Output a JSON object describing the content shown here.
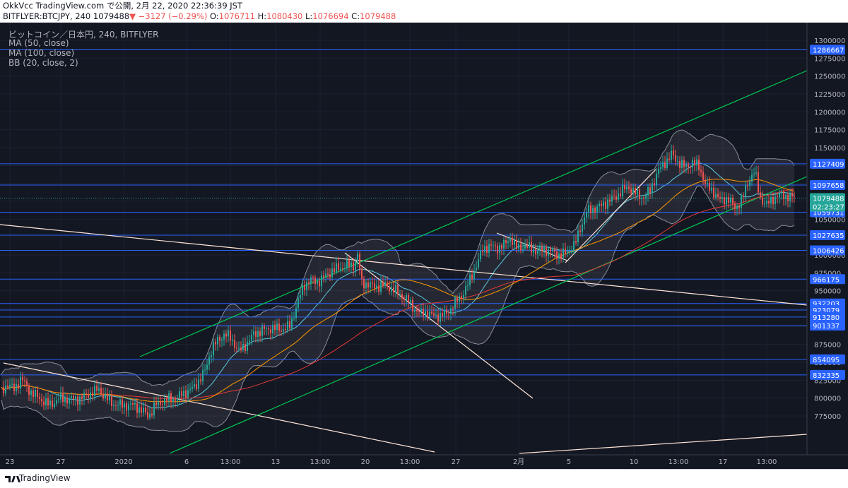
{
  "header": {
    "line1": "OkkVcc TradingView.com で公開, 2月 22, 2020 22:36:39 JST",
    "symbol": "BITFLYER:BTCJPY, 240",
    "last": "1079488",
    "change": "−3127 (−0.29%)",
    "o_label": "O:",
    "o_value": "1076711",
    "h_label": "H:",
    "h_value": "1080430",
    "l_label": "L:",
    "l_value": "1076694",
    "c_label": "C:",
    "c_value": "1079488"
  },
  "legend": {
    "title": "ビットコイン／日本円, 240, BITFLYER",
    "ma50": "MA (50, close)",
    "ma100": "MA (100, close)",
    "bb": "BB (20, close, 2)"
  },
  "footer": {
    "brand": "TradingView"
  },
  "chart_data": {
    "type": "candlestick",
    "price_axis": {
      "ticks": [
        1300000,
        1275000,
        1250000,
        1225000,
        1200000,
        1175000,
        1150000,
        1125000,
        1100000,
        1075000,
        1050000,
        1025000,
        1000000,
        975000,
        950000,
        925000,
        900000,
        875000,
        850000,
        825000,
        800000,
        775000
      ],
      "range": [
        765000,
        1310000
      ]
    },
    "time_axis": [
      "23",
      "27",
      "2020",
      "6",
      "13:00",
      "13",
      "13:00",
      "20",
      "13:00",
      "27",
      "2月",
      "5",
      "10",
      "13:00",
      "17",
      "13:00"
    ],
    "horizontal_levels": [
      1286667,
      1127409,
      1097658,
      1059731,
      1027635,
      1006426,
      966175,
      932203,
      923079,
      913280,
      901337,
      854095,
      832335
    ],
    "current_price": 1079488,
    "countdown": "02:23:27",
    "colors": {
      "up": "#26a69a",
      "down": "#ef5350",
      "ma50": "#ff9800",
      "ma100": "#e53935",
      "bb": "#5ac8e0",
      "levels": "#2962ff",
      "channel": "#00c853",
      "trend": "#ffe0d0",
      "background": "#131722"
    },
    "price_path": [
      [
        0,
        805000
      ],
      [
        10,
        820000
      ],
      [
        20,
        812000
      ],
      [
        30,
        828000
      ],
      [
        40,
        812000
      ],
      [
        55,
        800000
      ],
      [
        70,
        790000
      ],
      [
        85,
        800000
      ],
      [
        100,
        798000
      ],
      [
        115,
        800000
      ],
      [
        130,
        808000
      ],
      [
        140,
        812000
      ],
      [
        150,
        800000
      ],
      [
        160,
        792000
      ],
      [
        175,
        790000
      ],
      [
        190,
        790000
      ],
      [
        200,
        783000
      ],
      [
        210,
        775000
      ],
      [
        220,
        790000
      ],
      [
        235,
        798000
      ],
      [
        250,
        800000
      ],
      [
        262,
        808000
      ],
      [
        275,
        815000
      ],
      [
        290,
        838000
      ],
      [
        300,
        870000
      ],
      [
        308,
        880000
      ],
      [
        318,
        890000
      ],
      [
        328,
        882000
      ],
      [
        338,
        865000
      ],
      [
        348,
        875000
      ],
      [
        360,
        890000
      ],
      [
        372,
        895000
      ],
      [
        385,
        898000
      ],
      [
        398,
        896000
      ],
      [
        410,
        900000
      ],
      [
        420,
        930000
      ],
      [
        430,
        958000
      ],
      [
        440,
        965000
      ],
      [
        450,
        962000
      ],
      [
        460,
        970000
      ],
      [
        470,
        978000
      ],
      [
        480,
        982000
      ],
      [
        492,
        986000
      ],
      [
        500,
        985000
      ],
      [
        506,
        1000000
      ],
      [
        512,
        960000
      ],
      [
        520,
        960000
      ],
      [
        530,
        955000
      ],
      [
        540,
        958000
      ],
      [
        550,
        955000
      ],
      [
        560,
        950000
      ],
      [
        570,
        942000
      ],
      [
        578,
        935000
      ],
      [
        586,
        925000
      ],
      [
        594,
        918000
      ],
      [
        602,
        920000
      ],
      [
        612,
        915000
      ],
      [
        622,
        915000
      ],
      [
        632,
        918000
      ],
      [
        642,
        930000
      ],
      [
        650,
        940000
      ],
      [
        658,
        950000
      ],
      [
        666,
        968000
      ],
      [
        674,
        985000
      ],
      [
        684,
        1010000
      ],
      [
        694,
        1012000
      ],
      [
        704,
        1010000
      ],
      [
        714,
        1014000
      ],
      [
        722,
        1025000
      ],
      [
        730,
        1010000
      ],
      [
        740,
        1012000
      ],
      [
        750,
        1010000
      ],
      [
        760,
        1005000
      ],
      [
        770,
        1008000
      ],
      [
        780,
        1005000
      ],
      [
        790,
        1000000
      ],
      [
        800,
        1002000
      ],
      [
        806,
        1006000
      ],
      [
        814,
        1016000
      ],
      [
        822,
        1040000
      ],
      [
        830,
        1060000
      ],
      [
        840,
        1065000
      ],
      [
        850,
        1068000
      ],
      [
        860,
        1075000
      ],
      [
        870,
        1080000
      ],
      [
        880,
        1090000
      ],
      [
        890,
        1095000
      ],
      [
        900,
        1085000
      ],
      [
        910,
        1080000
      ],
      [
        920,
        1090000
      ],
      [
        930,
        1115000
      ],
      [
        940,
        1128000
      ],
      [
        950,
        1140000
      ],
      [
        960,
        1130000
      ],
      [
        970,
        1122000
      ],
      [
        980,
        1130000
      ],
      [
        990,
        1122000
      ],
      [
        1000,
        1095000
      ],
      [
        1010,
        1088000
      ],
      [
        1020,
        1075000
      ],
      [
        1030,
        1080000
      ],
      [
        1040,
        1065000
      ],
      [
        1050,
        1078000
      ],
      [
        1060,
        1105000
      ],
      [
        1068,
        1118000
      ],
      [
        1075,
        1080000
      ],
      [
        1085,
        1070000
      ],
      [
        1095,
        1080000
      ],
      [
        1105,
        1084000
      ],
      [
        1115,
        1082000
      ],
      [
        1124,
        1079488
      ]
    ]
  }
}
